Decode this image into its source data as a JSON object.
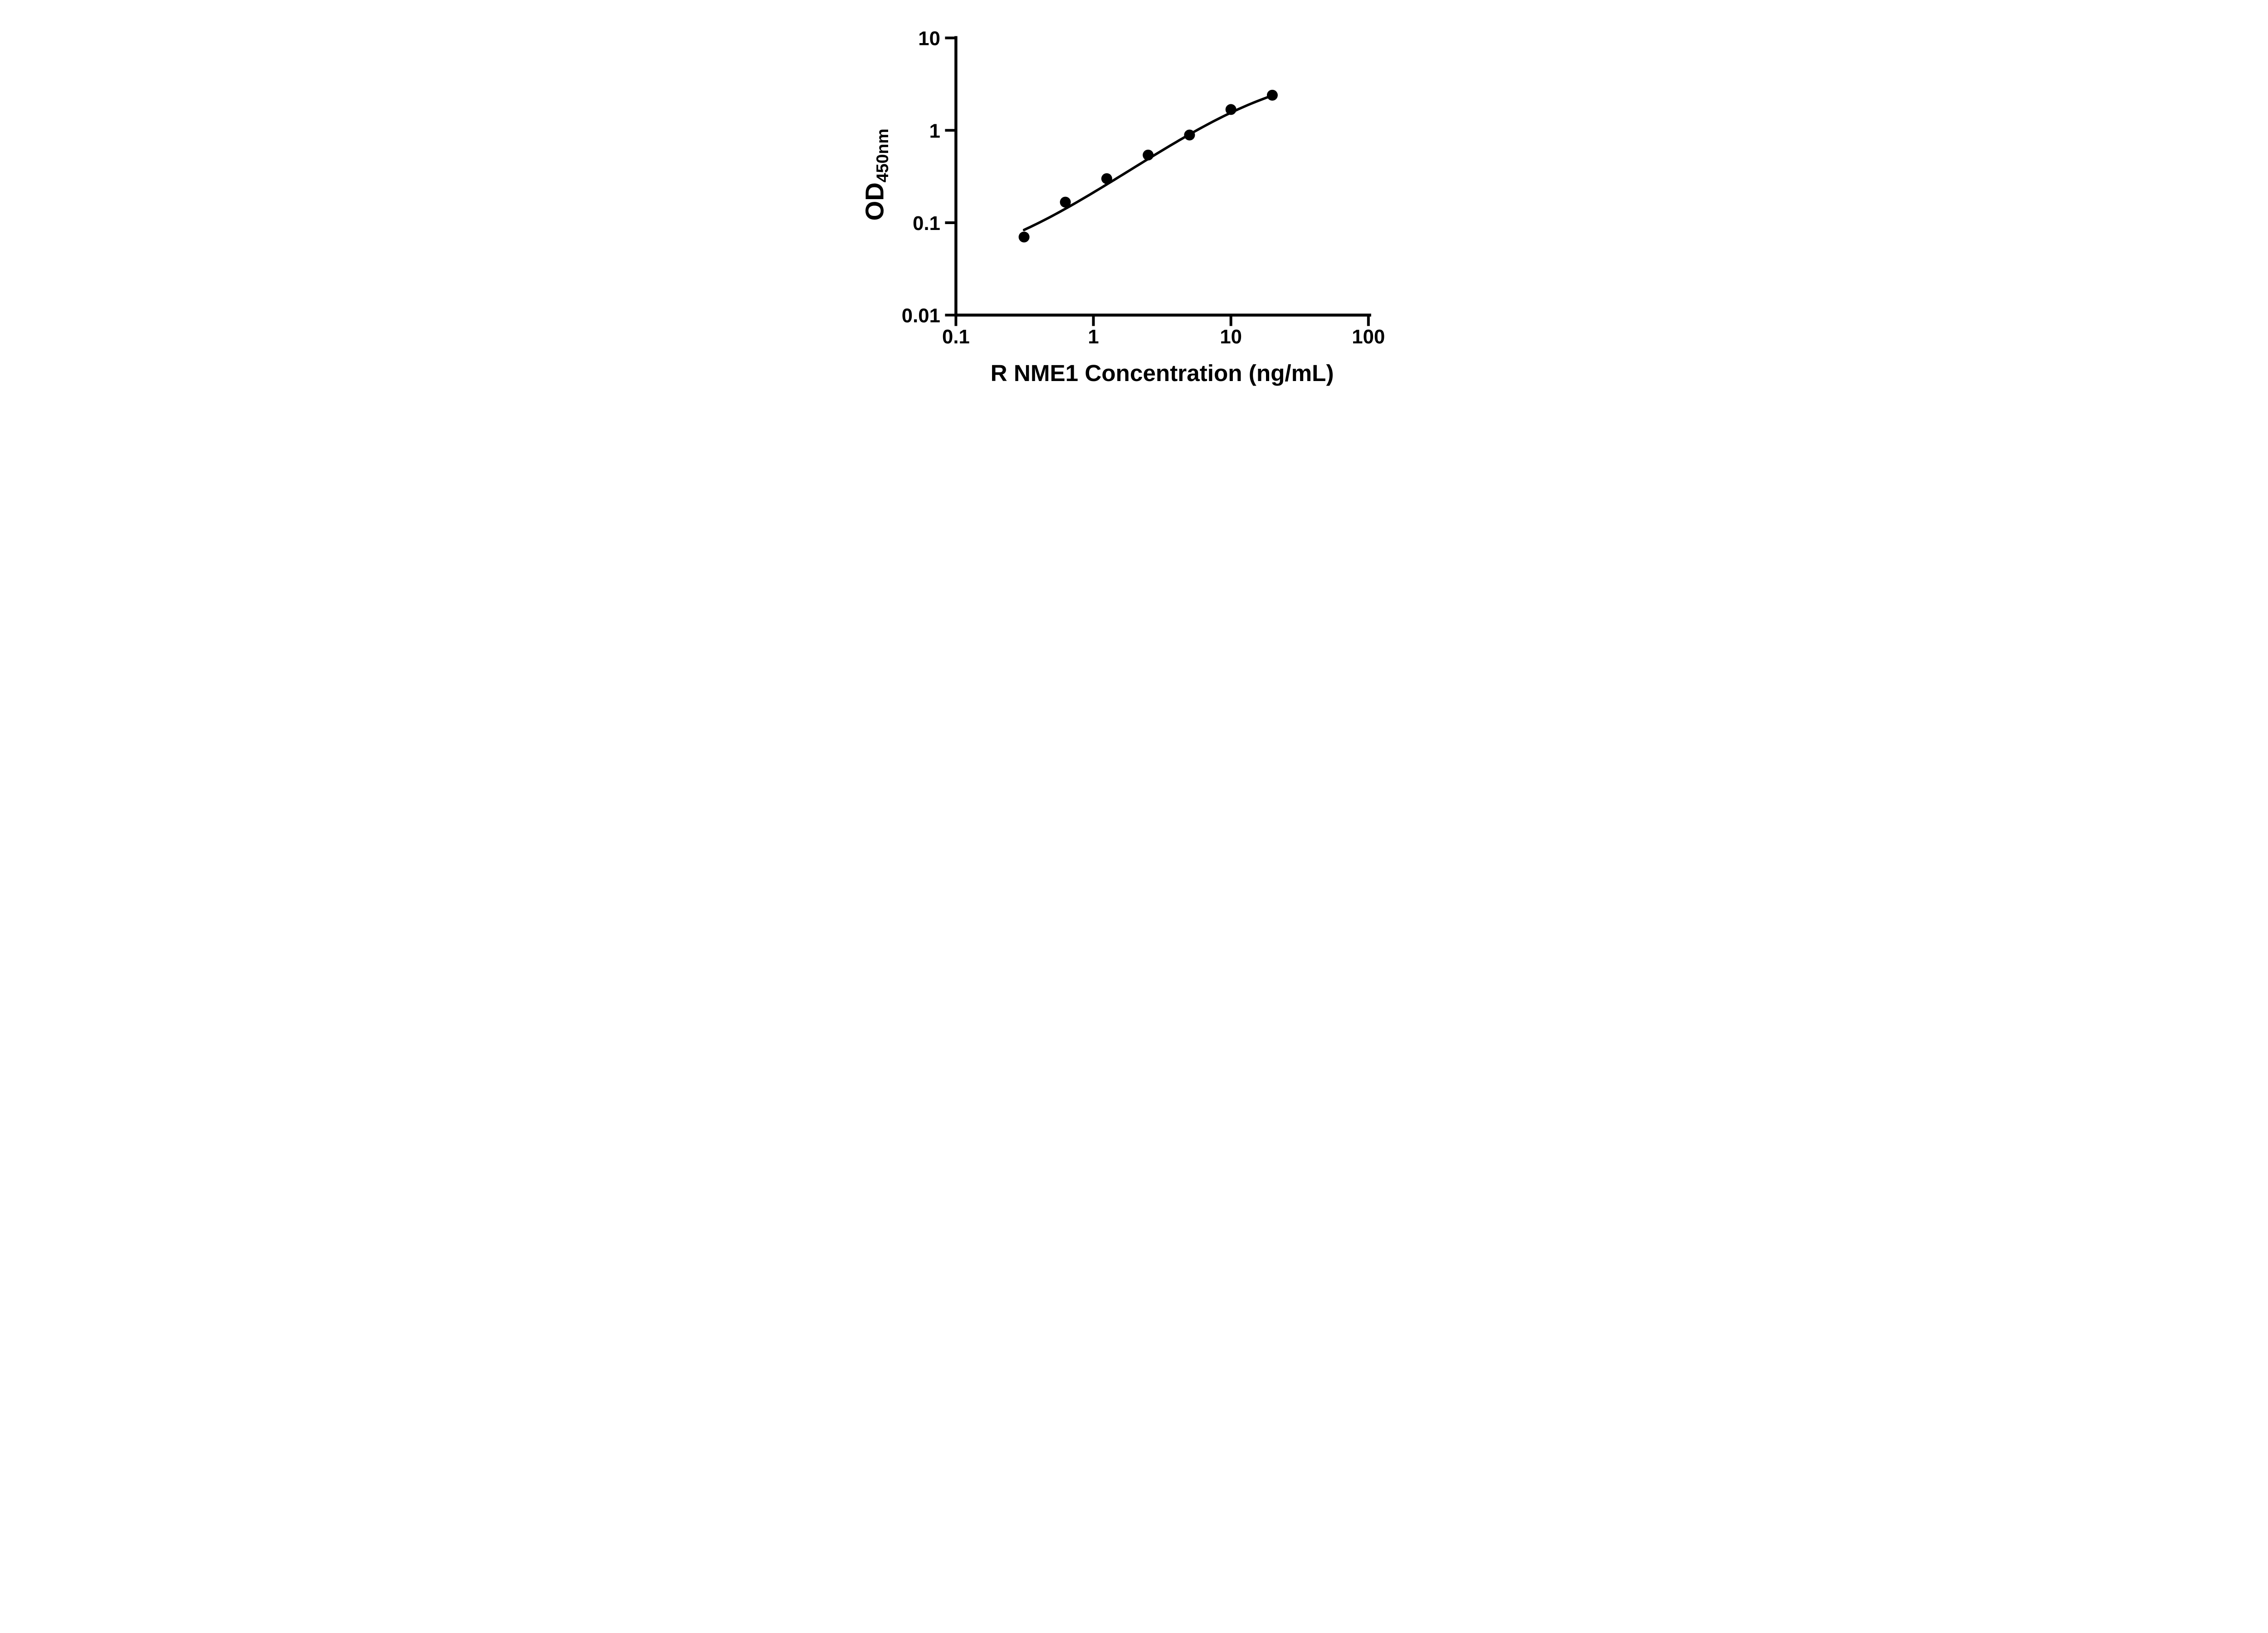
{
  "figure": {
    "background_color": "#ffffff",
    "foreground_color": "#000000"
  },
  "chart_data": {
    "type": "scatter",
    "title": "",
    "xlabel": "R NME1 Concentration (ng/mL)",
    "ylabel": {
      "text": "OD",
      "subscript": "450nm"
    },
    "x_scale": "log",
    "y_scale": "log",
    "xlim": [
      0.1,
      100
    ],
    "ylim": [
      0.01,
      10
    ],
    "x_ticks": [
      0.1,
      1,
      10,
      100
    ],
    "x_tick_labels": [
      "0.1",
      "1",
      "10",
      "100"
    ],
    "y_ticks": [
      10,
      1,
      0.1,
      0.01
    ],
    "y_tick_labels": [
      "10",
      "1",
      "0.1",
      "0.01"
    ],
    "grid": false,
    "legend": "none",
    "series": [
      {
        "name": "standard-points",
        "marker": "filled-circle",
        "color": "#000000",
        "x": [
          0.313,
          0.625,
          1.25,
          2.5,
          5,
          10,
          20
        ],
        "y": [
          0.07,
          0.167,
          0.3,
          0.54,
          0.89,
          1.68,
          2.4
        ]
      }
    ],
    "fit_curve": {
      "name": "4PL-fit-line",
      "model": "four-parameter-logistic",
      "color": "#000000",
      "params": {
        "A": 0.03,
        "D": 4.6,
        "C": 19,
        "B": 1.08
      },
      "x_start": 0.313,
      "x_end": 20
    }
  }
}
